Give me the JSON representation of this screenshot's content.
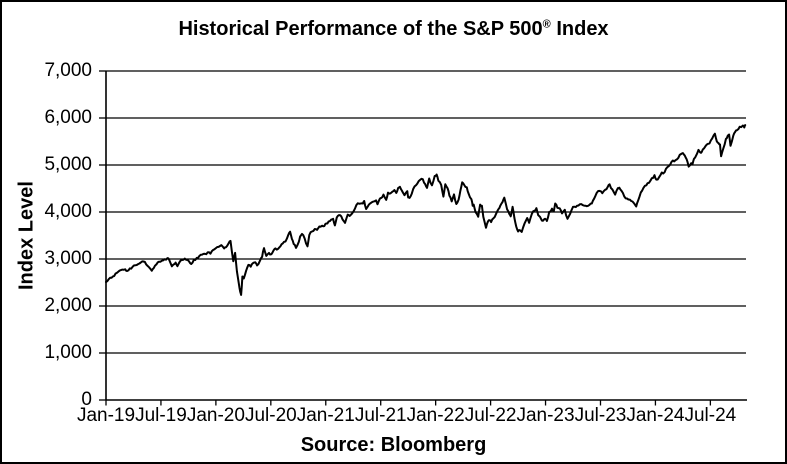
{
  "title": {
    "text": "Historical Performance of the S&P 500",
    "registered": "®",
    "suffix": " Index"
  },
  "footer": {
    "source": "Source: Bloomberg"
  },
  "chart_data": {
    "type": "line",
    "title": "Historical Performance of the S&P 500® Index",
    "xlabel": "",
    "ylabel": "Index Level",
    "ylim": [
      0,
      7000
    ],
    "xlim": [
      0,
      70
    ],
    "x_unit": "months since Jan-2019",
    "grid": "horizontal",
    "legend": "none",
    "line_color": "#000000",
    "y_ticks": [
      {
        "value": 0,
        "label": "0"
      },
      {
        "value": 1000,
        "label": "1,000"
      },
      {
        "value": 2000,
        "label": "2,000"
      },
      {
        "value": 3000,
        "label": "3,000"
      },
      {
        "value": 4000,
        "label": "4,000"
      },
      {
        "value": 5000,
        "label": "5,000"
      },
      {
        "value": 6000,
        "label": "6,000"
      },
      {
        "value": 7000,
        "label": "7,000"
      }
    ],
    "x_ticks": [
      {
        "t": 0,
        "label": "Jan-19"
      },
      {
        "t": 6,
        "label": "Jul-19"
      },
      {
        "t": 12,
        "label": "Jan-20"
      },
      {
        "t": 18,
        "label": "Jul-20"
      },
      {
        "t": 24,
        "label": "Jan-21"
      },
      {
        "t": 30,
        "label": "Jul-21"
      },
      {
        "t": 36,
        "label": "Jan-22"
      },
      {
        "t": 42,
        "label": "Jul-22"
      },
      {
        "t": 48,
        "label": "Jan-23"
      },
      {
        "t": 54,
        "label": "Jul-23"
      },
      {
        "t": 60,
        "label": "Jan-24"
      },
      {
        "t": 66,
        "label": "Jul-24"
      }
    ],
    "series": [
      {
        "name": "S&P 500 Index Level",
        "points": [
          [
            0,
            2510
          ],
          [
            0.3,
            2570
          ],
          [
            0.6,
            2600
          ],
          [
            0.9,
            2638
          ],
          [
            1.2,
            2706
          ],
          [
            1.5,
            2754
          ],
          [
            1.8,
            2775
          ],
          [
            2.1,
            2780
          ],
          [
            2.3,
            2744
          ],
          [
            2.6,
            2800
          ],
          [
            2.9,
            2834
          ],
          [
            3.2,
            2867
          ],
          [
            3.5,
            2892
          ],
          [
            3.8,
            2926
          ],
          [
            4.1,
            2946
          ],
          [
            4.4,
            2880
          ],
          [
            4.7,
            2826
          ],
          [
            5,
            2752
          ],
          [
            5.2,
            2803
          ],
          [
            5.5,
            2886
          ],
          [
            5.8,
            2942
          ],
          [
            6.1,
            2964
          ],
          [
            6.4,
            2995
          ],
          [
            6.7,
            3020
          ],
          [
            6.9,
            2980
          ],
          [
            7.2,
            2845
          ],
          [
            7.4,
            2888
          ],
          [
            7.6,
            2924
          ],
          [
            7.8,
            2847
          ],
          [
            8,
            2926
          ],
          [
            8.3,
            2978
          ],
          [
            8.6,
            3008
          ],
          [
            8.9,
            2978
          ],
          [
            9.1,
            2940
          ],
          [
            9.3,
            2893
          ],
          [
            9.6,
            2986
          ],
          [
            9.9,
            3023
          ],
          [
            10.2,
            3067
          ],
          [
            10.5,
            3094
          ],
          [
            10.8,
            3110
          ],
          [
            11.1,
            3141
          ],
          [
            11.4,
            3113
          ],
          [
            11.7,
            3192
          ],
          [
            12,
            3231
          ],
          [
            12.3,
            3258
          ],
          [
            12.6,
            3295
          ],
          [
            12.9,
            3226
          ],
          [
            13.1,
            3249
          ],
          [
            13.4,
            3338
          ],
          [
            13.6,
            3386
          ],
          [
            13.9,
            2954
          ],
          [
            14.1,
            3130
          ],
          [
            14.3,
            2741
          ],
          [
            14.5,
            2480
          ],
          [
            14.65,
            2305
          ],
          [
            14.75,
            2237
          ],
          [
            14.9,
            2627
          ],
          [
            15.05,
            2585
          ],
          [
            15.3,
            2750
          ],
          [
            15.55,
            2875
          ],
          [
            15.8,
            2837
          ],
          [
            16.05,
            2912
          ],
          [
            16.3,
            2930
          ],
          [
            16.5,
            2864
          ],
          [
            16.8,
            2955
          ],
          [
            17.05,
            3044
          ],
          [
            17.25,
            3232
          ],
          [
            17.5,
            3066
          ],
          [
            17.8,
            3130
          ],
          [
            18.05,
            3100
          ],
          [
            18.3,
            3185
          ],
          [
            18.5,
            3225
          ],
          [
            18.8,
            3216
          ],
          [
            19.05,
            3271
          ],
          [
            19.3,
            3330
          ],
          [
            19.6,
            3373
          ],
          [
            19.9,
            3508
          ],
          [
            20.1,
            3580
          ],
          [
            20.3,
            3427
          ],
          [
            20.5,
            3319
          ],
          [
            20.75,
            3237
          ],
          [
            21.05,
            3363
          ],
          [
            21.2,
            3477
          ],
          [
            21.4,
            3534
          ],
          [
            21.7,
            3435
          ],
          [
            22,
            3270
          ],
          [
            22.2,
            3510
          ],
          [
            22.5,
            3585
          ],
          [
            22.8,
            3638
          ],
          [
            23.05,
            3622
          ],
          [
            23.3,
            3691
          ],
          [
            23.6,
            3709
          ],
          [
            23.85,
            3703
          ],
          [
            24.05,
            3756
          ],
          [
            24.3,
            3795
          ],
          [
            24.6,
            3841
          ],
          [
            24.8,
            3855
          ],
          [
            25,
            3714
          ],
          [
            25.2,
            3886
          ],
          [
            25.45,
            3935
          ],
          [
            25.7,
            3906
          ],
          [
            25.95,
            3811
          ],
          [
            26.1,
            3768
          ],
          [
            26.4,
            3943
          ],
          [
            26.6,
            3915
          ],
          [
            26.9,
            3975
          ],
          [
            27.2,
            4078
          ],
          [
            27.5,
            4185
          ],
          [
            27.8,
            4180
          ],
          [
            28.05,
            4181
          ],
          [
            28.2,
            4233
          ],
          [
            28.4,
            4063
          ],
          [
            28.7,
            4156
          ],
          [
            29,
            4204
          ],
          [
            29.3,
            4227
          ],
          [
            29.5,
            4247
          ],
          [
            29.65,
            4166
          ],
          [
            29.9,
            4281
          ],
          [
            30.05,
            4297
          ],
          [
            30.3,
            4370
          ],
          [
            30.6,
            4258
          ],
          [
            30.8,
            4412
          ],
          [
            31.05,
            4395
          ],
          [
            31.3,
            4436
          ],
          [
            31.5,
            4468
          ],
          [
            31.7,
            4406
          ],
          [
            31.9,
            4509
          ],
          [
            32.1,
            4537
          ],
          [
            32.3,
            4458
          ],
          [
            32.6,
            4358
          ],
          [
            32.9,
            4443
          ],
          [
            33,
            4308
          ],
          [
            33.15,
            4300
          ],
          [
            33.4,
            4391
          ],
          [
            33.7,
            4545
          ],
          [
            34,
            4605
          ],
          [
            34.3,
            4682
          ],
          [
            34.6,
            4698
          ],
          [
            34.85,
            4595
          ],
          [
            35.05,
            4513
          ],
          [
            35.3,
            4712
          ],
          [
            35.6,
            4568
          ],
          [
            35.9,
            4766
          ],
          [
            36.1,
            4797
          ],
          [
            36.3,
            4663
          ],
          [
            36.6,
            4577
          ],
          [
            36.85,
            4327
          ],
          [
            37.05,
            4589
          ],
          [
            37.3,
            4504
          ],
          [
            37.5,
            4349
          ],
          [
            37.75,
            4226
          ],
          [
            38,
            4374
          ],
          [
            38.25,
            4171
          ],
          [
            38.5,
            4263
          ],
          [
            38.7,
            4456
          ],
          [
            38.9,
            4632
          ],
          [
            39.1,
            4583
          ],
          [
            39.4,
            4525
          ],
          [
            39.6,
            4392
          ],
          [
            39.9,
            4272
          ],
          [
            40.05,
            4131
          ],
          [
            40.15,
            4155
          ],
          [
            40.35,
            4001
          ],
          [
            40.65,
            3901
          ],
          [
            40.85,
            4158
          ],
          [
            41.05,
            4132
          ],
          [
            41.2,
            3900
          ],
          [
            41.5,
            3667
          ],
          [
            41.7,
            3795
          ],
          [
            41.9,
            3825
          ],
          [
            42.05,
            3785
          ],
          [
            42.3,
            3863
          ],
          [
            42.6,
            3961
          ],
          [
            42.9,
            4072
          ],
          [
            43.05,
            4130
          ],
          [
            43.3,
            4210
          ],
          [
            43.5,
            4305
          ],
          [
            43.8,
            4057
          ],
          [
            44.05,
            3955
          ],
          [
            44.2,
            3908
          ],
          [
            44.4,
            4110
          ],
          [
            44.6,
            3873
          ],
          [
            44.8,
            3693
          ],
          [
            45,
            3585
          ],
          [
            45.2,
            3612
          ],
          [
            45.4,
            3577
          ],
          [
            45.7,
            3753
          ],
          [
            46,
            3872
          ],
          [
            46.2,
            3770
          ],
          [
            46.5,
            3957
          ],
          [
            46.8,
            4027
          ],
          [
            47,
            4080
          ],
          [
            47.2,
            3934
          ],
          [
            47.6,
            3817
          ],
          [
            47.85,
            3844
          ],
          [
            48.05,
            3840
          ],
          [
            48.15,
            3808
          ],
          [
            48.4,
            3999
          ],
          [
            48.7,
            4070
          ],
          [
            48.9,
            4016
          ],
          [
            49.05,
            4180
          ],
          [
            49.3,
            4090
          ],
          [
            49.55,
            4079
          ],
          [
            49.8,
            3970
          ],
          [
            50.1,
            4046
          ],
          [
            50.4,
            3856
          ],
          [
            50.7,
            3971
          ],
          [
            51,
            4109
          ],
          [
            51.3,
            4105
          ],
          [
            51.6,
            4138
          ],
          [
            51.9,
            4169
          ],
          [
            52.2,
            4136
          ],
          [
            52.5,
            4124
          ],
          [
            52.8,
            4151
          ],
          [
            53.05,
            4180
          ],
          [
            53.3,
            4283
          ],
          [
            53.6,
            4410
          ],
          [
            53.9,
            4450
          ],
          [
            54.2,
            4399
          ],
          [
            54.5,
            4473
          ],
          [
            54.8,
            4537
          ],
          [
            55,
            4589
          ],
          [
            55.3,
            4478
          ],
          [
            55.6,
            4370
          ],
          [
            55.9,
            4508
          ],
          [
            56.05,
            4516
          ],
          [
            56.3,
            4451
          ],
          [
            56.6,
            4330
          ],
          [
            56.9,
            4288
          ],
          [
            57.2,
            4263
          ],
          [
            57.5,
            4224
          ],
          [
            57.9,
            4117
          ],
          [
            58.1,
            4237
          ],
          [
            58.4,
            4415
          ],
          [
            58.7,
            4514
          ],
          [
            59,
            4568
          ],
          [
            59.3,
            4622
          ],
          [
            59.6,
            4719
          ],
          [
            59.9,
            4783
          ],
          [
            60.1,
            4689
          ],
          [
            60.4,
            4740
          ],
          [
            60.7,
            4840
          ],
          [
            61,
            4846
          ],
          [
            61.3,
            4953
          ],
          [
            61.6,
            5006
          ],
          [
            61.9,
            5096
          ],
          [
            62.2,
            5104
          ],
          [
            62.5,
            5150
          ],
          [
            62.8,
            5234
          ],
          [
            63,
            5254
          ],
          [
            63.2,
            5205
          ],
          [
            63.4,
            5123
          ],
          [
            63.63,
            4967
          ],
          [
            63.9,
            5036
          ],
          [
            64.05,
            5018
          ],
          [
            64.2,
            5128
          ],
          [
            64.5,
            5222
          ],
          [
            64.7,
            5321
          ],
          [
            64.9,
            5267
          ],
          [
            65.05,
            5277
          ],
          [
            65.3,
            5354
          ],
          [
            65.6,
            5433
          ],
          [
            65.9,
            5460
          ],
          [
            66.2,
            5567
          ],
          [
            66.5,
            5667
          ],
          [
            66.7,
            5505
          ],
          [
            66.9,
            5463
          ],
          [
            67.05,
            5436
          ],
          [
            67.17,
            5186
          ],
          [
            67.4,
            5344
          ],
          [
            67.7,
            5554
          ],
          [
            67.9,
            5625
          ],
          [
            68.05,
            5648
          ],
          [
            68.2,
            5408
          ],
          [
            68.5,
            5626
          ],
          [
            68.7,
            5702
          ],
          [
            68.9,
            5738
          ],
          [
            69.05,
            5762
          ],
          [
            69.2,
            5815
          ],
          [
            69.55,
            5841
          ],
          [
            69.7,
            5797
          ],
          [
            69.8,
            5850
          ]
        ]
      }
    ],
    "source": "Bloomberg"
  }
}
